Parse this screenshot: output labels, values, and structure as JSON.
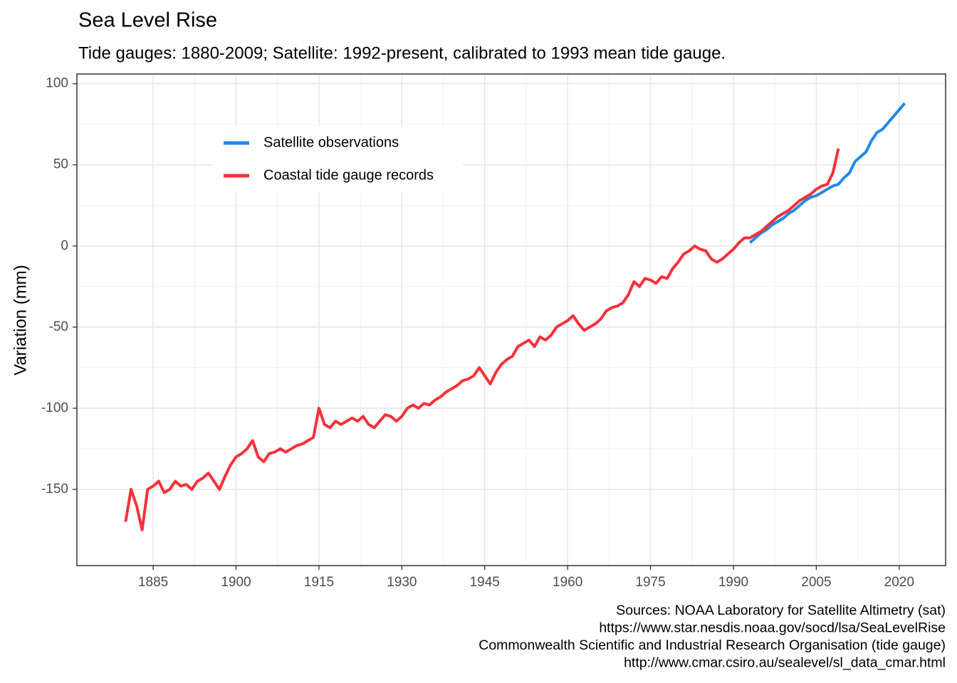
{
  "chart_data": {
    "type": "line",
    "title": "Sea Level Rise",
    "subtitle": "Tide gauges: 1880-2009; Satellite: 1992-present, calibrated to 1993 mean tide gauge.",
    "y_label": "Variation (mm)",
    "caption": [
      "Sources: NOAA Laboratory for Satellite Altimetry (sat)",
      "https://www.star.nesdis.noaa.gov/socd/lsa/SeaLevelRise",
      "Commonwealth Scientific and Industrial Research Organisation (tide gauge)",
      "http://www.cmar.csiro.au/sealevel/sl_data_cmar.html"
    ],
    "xlim": [
      1871.2,
      2028.4
    ],
    "ylim": [
      -197,
      106
    ],
    "xticks": [
      1885,
      1900,
      1915,
      1930,
      1945,
      1960,
      1975,
      1990,
      2005,
      2020
    ],
    "yticks": [
      -150,
      -100,
      -50,
      0,
      50,
      100
    ],
    "grid": true,
    "legend": "top-left",
    "series": [
      {
        "name": "Satellite observations",
        "color": "#2389e6",
        "x": [
          1993,
          1994,
          1995,
          1996,
          1997,
          1998,
          1999,
          2000,
          2001,
          2002,
          2003,
          2004,
          2005,
          2006,
          2007,
          2008,
          2009,
          2010,
          2011,
          2012,
          2013,
          2014,
          2015,
          2016,
          2017,
          2018,
          2019,
          2020,
          2021
        ],
        "values": [
          2,
          5,
          8,
          10,
          13,
          15,
          17,
          20,
          22,
          25,
          28,
          30,
          31,
          33,
          35,
          37,
          38,
          42,
          45,
          52,
          55,
          58,
          65,
          70,
          72,
          76,
          80,
          84,
          88
        ]
      },
      {
        "name": "Coastal tide gauge records",
        "color": "#f6313a",
        "x": [
          1880,
          1881,
          1882,
          1883,
          1884,
          1885,
          1886,
          1887,
          1888,
          1889,
          1890,
          1891,
          1892,
          1893,
          1894,
          1895,
          1896,
          1897,
          1898,
          1899,
          1900,
          1901,
          1902,
          1903,
          1904,
          1905,
          1906,
          1907,
          1908,
          1909,
          1910,
          1911,
          1912,
          1913,
          1914,
          1915,
          1916,
          1917,
          1918,
          1919,
          1920,
          1921,
          1922,
          1923,
          1924,
          1925,
          1926,
          1927,
          1928,
          1929,
          1930,
          1931,
          1932,
          1933,
          1934,
          1935,
          1936,
          1937,
          1938,
          1939,
          1940,
          1941,
          1942,
          1943,
          1944,
          1945,
          1946,
          1947,
          1948,
          1949,
          1950,
          1951,
          1952,
          1953,
          1954,
          1955,
          1956,
          1957,
          1958,
          1959,
          1960,
          1961,
          1962,
          1963,
          1964,
          1965,
          1966,
          1967,
          1968,
          1969,
          1970,
          1971,
          1972,
          1973,
          1974,
          1975,
          1976,
          1977,
          1978,
          1979,
          1980,
          1981,
          1982,
          1983,
          1984,
          1985,
          1986,
          1987,
          1988,
          1989,
          1990,
          1991,
          1992,
          1993,
          1994,
          1995,
          1996,
          1997,
          1998,
          1999,
          2000,
          2001,
          2002,
          2003,
          2004,
          2005,
          2006,
          2007,
          2008,
          2009
        ],
        "values": [
          -170,
          -150,
          -160,
          -175,
          -150,
          -148,
          -145,
          -152,
          -150,
          -145,
          -148,
          -147,
          -150,
          -145,
          -143,
          -140,
          -145,
          -150,
          -142,
          -135,
          -130,
          -128,
          -125,
          -120,
          -130,
          -133,
          -128,
          -127,
          -125,
          -127,
          -125,
          -123,
          -122,
          -120,
          -118,
          -100,
          -110,
          -112,
          -108,
          -110,
          -108,
          -106,
          -108,
          -105,
          -110,
          -112,
          -108,
          -104,
          -105,
          -108,
          -105,
          -100,
          -98,
          -100,
          -97,
          -98,
          -95,
          -93,
          -90,
          -88,
          -86,
          -83,
          -82,
          -80,
          -75,
          -80,
          -85,
          -78,
          -73,
          -70,
          -68,
          -62,
          -60,
          -58,
          -62,
          -56,
          -58,
          -55,
          -50,
          -48,
          -46,
          -43,
          -48,
          -52,
          -50,
          -48,
          -45,
          -40,
          -38,
          -37,
          -35,
          -30,
          -22,
          -25,
          -20,
          -21,
          -23,
          -19,
          -20,
          -14,
          -10,
          -5,
          -3,
          0,
          -2,
          -3,
          -8,
          -10,
          -8,
          -5,
          -2,
          2,
          5,
          5,
          7,
          9,
          12,
          15,
          18,
          20,
          22,
          25,
          28,
          30,
          32,
          35,
          37,
          38,
          45,
          60
        ]
      }
    ]
  }
}
